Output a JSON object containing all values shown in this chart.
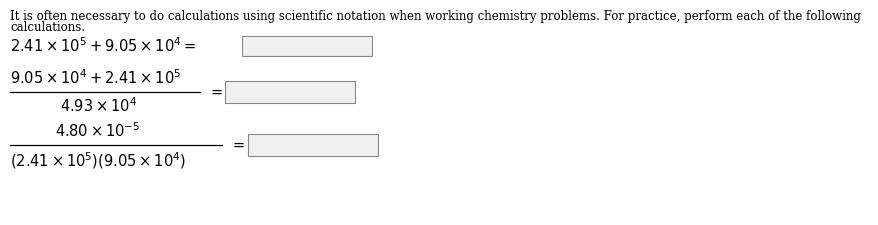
{
  "bg_color": "#ffffff",
  "text_color": "#000000",
  "intro_line1": "It is often necessary to do calculations using scientific notation when working chemistry problems. For practice, perform each of the following",
  "intro_line2": "calculations.",
  "eq1": "$2.41 \\times 10^5 + 9.05 \\times 10^4 =$",
  "eq2_num": "$9.05 \\times 10^4 + 2.41 \\times 10^5$",
  "eq2_den": "$4.93 \\times 10^4$",
  "eq3_num": "$4.80 \\times 10^{-5}$",
  "eq3_den": "$(2.41 \\times 10^5)(9.05 \\times 10^4)$",
  "eq_sign": "$=$",
  "box_color": "#f0f0f0",
  "box_edge_color": "#888888",
  "font_size_intro": 8.5,
  "font_size_eq": 10.5
}
